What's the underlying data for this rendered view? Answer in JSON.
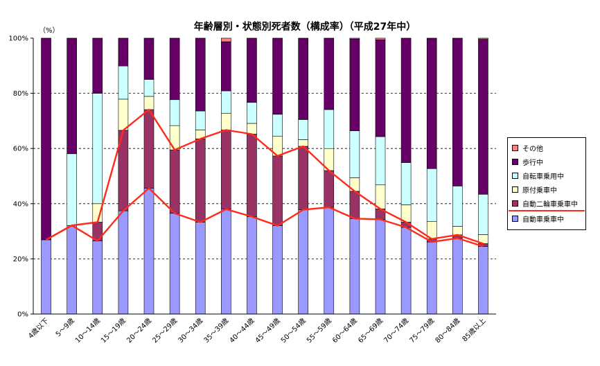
{
  "chart_data": {
    "type": "bar",
    "stacked": true,
    "percent": true,
    "title": "年齢層別・状態別死者数（構成率）（平成27年中）",
    "unit_label": "（%）",
    "ylim": [
      0,
      100
    ],
    "yticks": [
      "0%",
      "20%",
      "40%",
      "60%",
      "80%",
      "100%"
    ],
    "grid": "dashed at 20% steps",
    "legend_position": "right",
    "categories": [
      "4歳以下",
      "5～9歳",
      "10～14歳",
      "15～19歳",
      "20～24歳",
      "25～29歳",
      "30～34歳",
      "35～39歳",
      "40～44歳",
      "45～49歳",
      "50～54歳",
      "55～59歳",
      "60～64歳",
      "65～69歳",
      "70～74歳",
      "75～79歳",
      "80～84歳",
      "85歳以上"
    ],
    "series": [
      {
        "name": "自動車乗車中",
        "color": "#9999ff",
        "values": [
          26.9,
          32.1,
          26.5,
          37.4,
          45.6,
          36.5,
          33.3,
          38.0,
          35.3,
          32.0,
          37.8,
          38.7,
          34.6,
          34.3,
          31.4,
          26.1,
          27.5,
          24.5
        ]
      },
      {
        "name": "自動二輪車乗車中",
        "color": "#993366",
        "values": [
          0,
          0,
          6.8,
          29.2,
          28.5,
          23.0,
          30.2,
          28.7,
          29.9,
          25.3,
          23.0,
          13.3,
          9.9,
          3.8,
          1.9,
          1.1,
          1.2,
          1.0
        ]
      },
      {
        "name": "原付乗車中",
        "color": "#ffffcc",
        "values": [
          0,
          0,
          6.7,
          11.3,
          4.8,
          8.8,
          3.2,
          6.0,
          3.9,
          7.1,
          2.4,
          8.0,
          4.9,
          8.7,
          6.3,
          6.3,
          3.1,
          3.3
        ]
      },
      {
        "name": "自転車乗用中",
        "color": "#ccffff",
        "values": [
          0,
          26.0,
          40.0,
          12.0,
          6.1,
          9.4,
          6.9,
          8.2,
          7.6,
          8.0,
          7.3,
          14.1,
          17.0,
          17.5,
          15.3,
          19.2,
          14.6,
          14.6
        ]
      },
      {
        "name": "歩行中",
        "color": "#660066",
        "values": [
          73.1,
          41.9,
          20.0,
          10.1,
          15.0,
          22.3,
          26.4,
          17.8,
          23.3,
          27.6,
          29.3,
          25.9,
          33.3,
          35.1,
          45.1,
          47.1,
          53.4,
          56.2
        ]
      },
      {
        "name": "その他",
        "color": "#ff8080",
        "values": [
          0,
          0,
          0,
          0,
          0,
          0,
          0,
          1.3,
          0,
          0,
          0.2,
          0,
          0.3,
          0.6,
          0,
          0.2,
          0.2,
          0.4
        ]
      }
    ],
    "legend_order": [
      "その他",
      "歩行中",
      "自転車乗用中",
      "原付乗車中",
      "自動二輪車乗車中",
      "自動車乗車中"
    ],
    "highlight": {
      "series": [
        "自動車乗車中",
        "自動二輪車乗車中"
      ],
      "line_color": "#ff2a1a"
    }
  }
}
